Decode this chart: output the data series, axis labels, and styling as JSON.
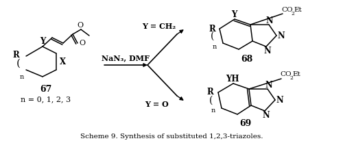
{
  "title": "Scheme 9. Synthesis of substituted 1,2,3-triazoles.",
  "bg_color": "#ffffff",
  "fig_width": 5.0,
  "fig_height": 2.06,
  "dpi": 100,
  "reagent": "NaN₃, DMF",
  "c67": "67",
  "c67n": "n = 0, 1, 2, 3",
  "c68": "68",
  "c69": "69",
  "y_ch2": "Y = CH₂",
  "y_o": "Y = O"
}
